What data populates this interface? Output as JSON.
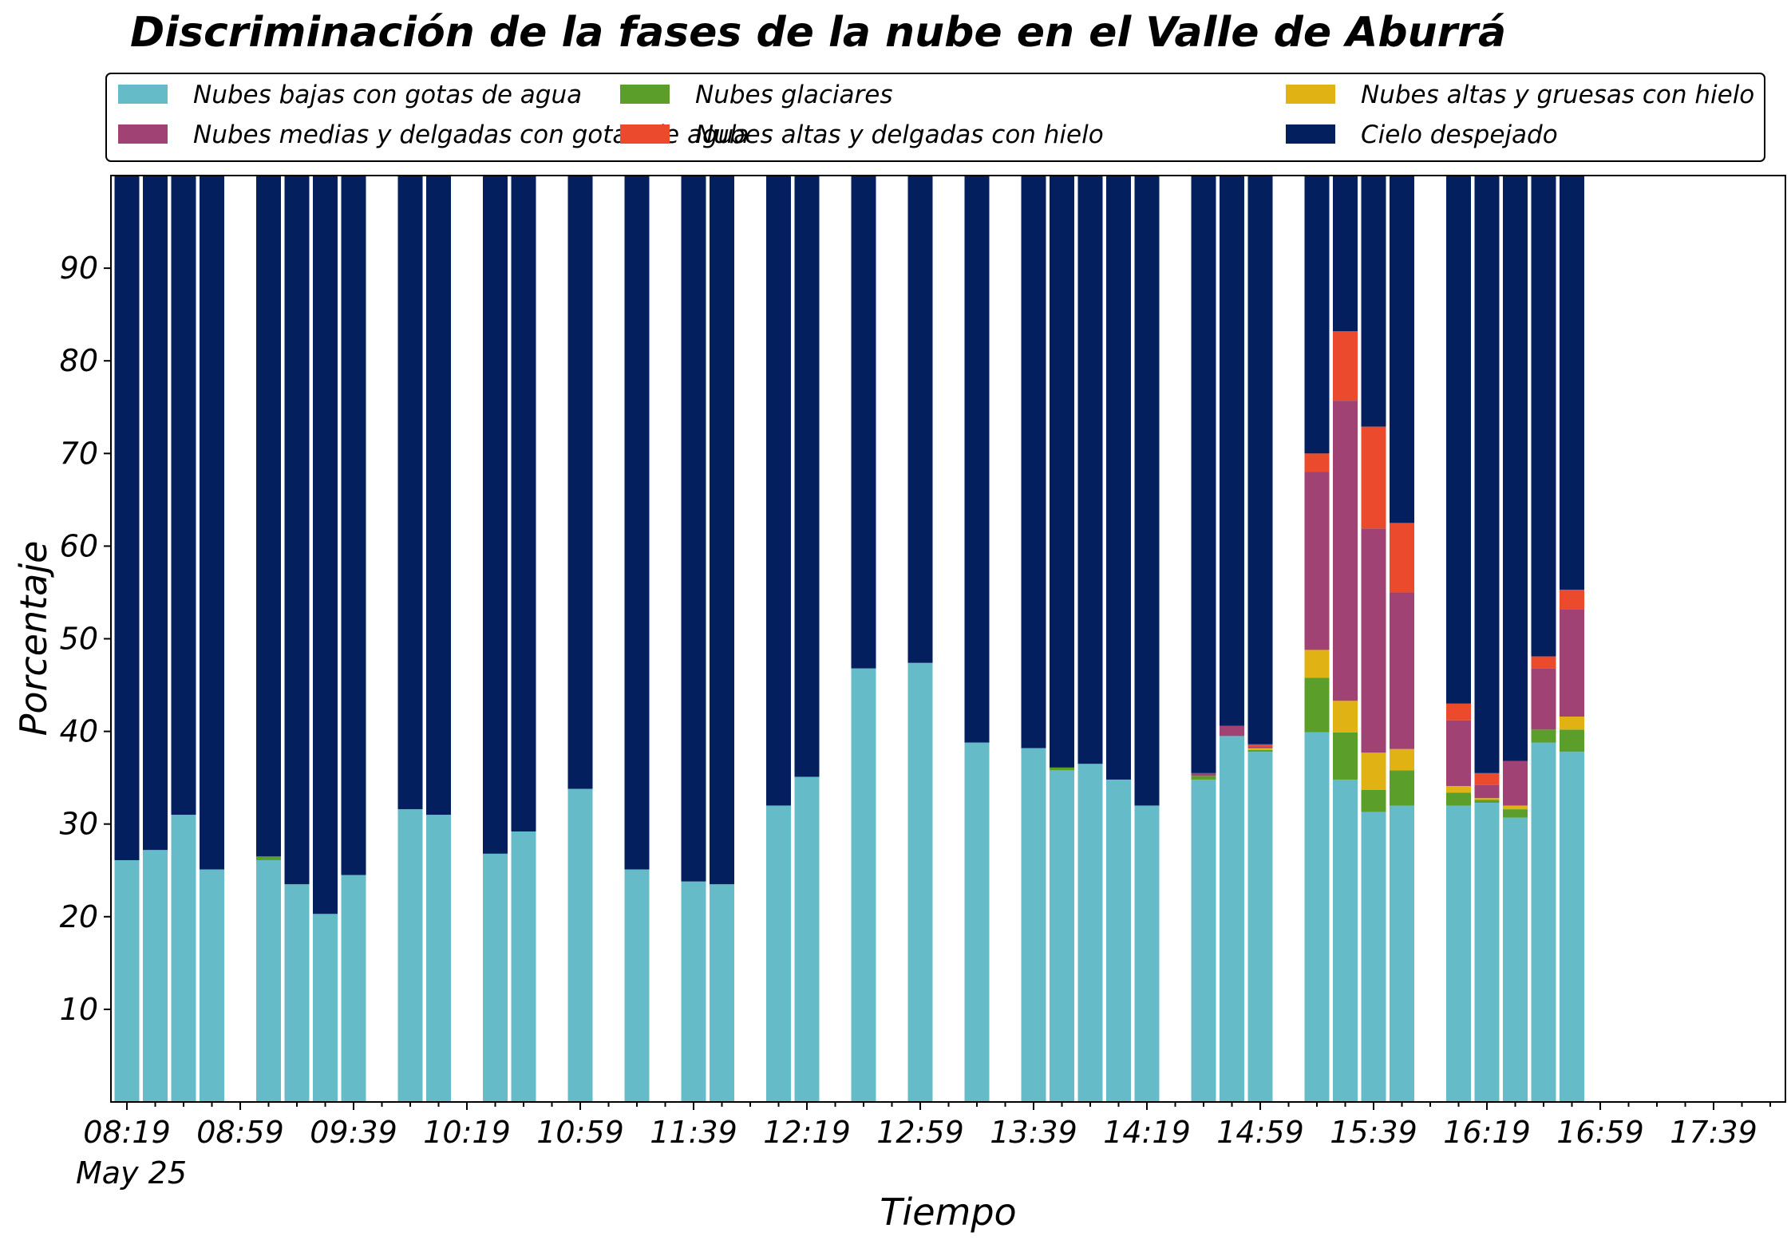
{
  "chart_data": {
    "type": "bar",
    "stacked": true,
    "title": "Discriminación de la fases de la nube en el Valle de Aburrá",
    "xlabel": "Tiempo",
    "ylabel": "Porcentaje",
    "ylim": [
      0,
      100
    ],
    "yticks": [
      10,
      20,
      30,
      40,
      50,
      60,
      70,
      80,
      90
    ],
    "x_start": "08:19",
    "x_step_minutes": 10,
    "x_count": 59,
    "x_tick_labels": [
      "08:19",
      "08:59",
      "09:39",
      "10:19",
      "10:59",
      "11:39",
      "12:19",
      "12:59",
      "13:39",
      "14:19",
      "14:59",
      "15:39",
      "16:19",
      "16:59",
      "17:39"
    ],
    "x_tick_sublabel": "May 25",
    "grid": false,
    "legend_position": "top",
    "legend_columns": 3,
    "series": [
      {
        "name": "Nubes bajas con gotas de agua",
        "color": "#65bcc8"
      },
      {
        "name": "Nubes glaciares",
        "color": "#5b9e2a"
      },
      {
        "name": "Nubes altas y gruesas con hielo",
        "color": "#e1b214"
      },
      {
        "name": "Nubes medias y delgadas con gotas de agua",
        "color": "#a04274"
      },
      {
        "name": "Nubes altas y delgadas con hielo",
        "color": "#ec4a2c"
      },
      {
        "name": "Cielo despejado",
        "color": "#031f5e"
      }
    ],
    "bars": [
      {
        "x": "08:19",
        "values": [
          26.1,
          0,
          0,
          0,
          0,
          73.9
        ]
      },
      {
        "x": "08:29",
        "values": [
          27.2,
          0,
          0,
          0,
          0,
          72.8
        ]
      },
      {
        "x": "08:39",
        "values": [
          31.0,
          0,
          0,
          0,
          0,
          69.0
        ]
      },
      {
        "x": "08:49",
        "values": [
          25.1,
          0,
          0,
          0,
          0,
          74.9
        ]
      },
      {
        "x": "09:09",
        "values": [
          26.1,
          0.4,
          0,
          0,
          0,
          73.5
        ]
      },
      {
        "x": "09:19",
        "values": [
          23.5,
          0,
          0,
          0,
          0,
          76.5
        ]
      },
      {
        "x": "09:29",
        "values": [
          20.3,
          0,
          0,
          0,
          0,
          79.7
        ]
      },
      {
        "x": "09:39",
        "values": [
          24.5,
          0,
          0,
          0,
          0,
          75.5
        ]
      },
      {
        "x": "09:59",
        "values": [
          31.6,
          0,
          0,
          0,
          0,
          68.4
        ]
      },
      {
        "x": "10:09",
        "values": [
          31.0,
          0,
          0,
          0,
          0,
          69.0
        ]
      },
      {
        "x": "10:29",
        "values": [
          26.8,
          0,
          0,
          0,
          0,
          73.2
        ]
      },
      {
        "x": "10:39",
        "values": [
          29.2,
          0,
          0,
          0,
          0,
          70.8
        ]
      },
      {
        "x": "10:59",
        "values": [
          33.8,
          0,
          0,
          0,
          0,
          66.2
        ]
      },
      {
        "x": "11:19",
        "values": [
          25.1,
          0,
          0,
          0,
          0,
          74.9
        ]
      },
      {
        "x": "11:39",
        "values": [
          23.8,
          0,
          0,
          0,
          0,
          76.2
        ]
      },
      {
        "x": "11:49",
        "values": [
          23.5,
          0,
          0,
          0,
          0,
          76.5
        ]
      },
      {
        "x": "12:09",
        "values": [
          32.0,
          0,
          0,
          0,
          0,
          68.0
        ]
      },
      {
        "x": "12:19",
        "values": [
          35.1,
          0,
          0,
          0,
          0,
          64.9
        ]
      },
      {
        "x": "12:39",
        "values": [
          46.8,
          0,
          0,
          0,
          0,
          53.2
        ]
      },
      {
        "x": "12:59",
        "values": [
          47.4,
          0,
          0,
          0,
          0,
          52.6
        ]
      },
      {
        "x": "13:19",
        "values": [
          38.8,
          0,
          0,
          0,
          0,
          61.2
        ]
      },
      {
        "x": "13:39",
        "values": [
          38.2,
          0,
          0,
          0,
          0,
          61.8
        ]
      },
      {
        "x": "13:49",
        "values": [
          35.8,
          0.3,
          0,
          0,
          0,
          63.9
        ]
      },
      {
        "x": "13:59",
        "values": [
          36.5,
          0,
          0,
          0,
          0,
          63.5
        ]
      },
      {
        "x": "14:09",
        "values": [
          34.8,
          0,
          0,
          0,
          0,
          65.2
        ]
      },
      {
        "x": "14:19",
        "values": [
          32.0,
          0,
          0,
          0,
          0,
          68.0
        ]
      },
      {
        "x": "14:39",
        "values": [
          34.8,
          0.4,
          0,
          0.3,
          0,
          64.5
        ]
      },
      {
        "x": "14:49",
        "values": [
          39.5,
          0,
          0,
          1.1,
          0,
          59.4
        ]
      },
      {
        "x": "14:59",
        "values": [
          37.8,
          0.2,
          0.2,
          0.2,
          0.2,
          61.4
        ]
      },
      {
        "x": "15:19",
        "values": [
          39.9,
          5.9,
          3.0,
          19.2,
          2.0,
          30.0
        ]
      },
      {
        "x": "15:29",
        "values": [
          34.8,
          5.1,
          3.4,
          32.4,
          7.5,
          16.8
        ]
      },
      {
        "x": "15:39",
        "values": [
          31.3,
          2.4,
          4.0,
          24.2,
          11.0,
          27.1
        ]
      },
      {
        "x": "15:49",
        "values": [
          32.0,
          3.8,
          2.3,
          16.9,
          7.5,
          37.5
        ]
      },
      {
        "x": "16:09",
        "values": [
          32.0,
          1.4,
          0.7,
          7.1,
          1.8,
          57.0
        ]
      },
      {
        "x": "16:19",
        "values": [
          32.3,
          0.3,
          0.2,
          1.4,
          1.3,
          64.5
        ]
      },
      {
        "x": "16:29",
        "values": [
          30.7,
          0.9,
          0.4,
          4.8,
          0,
          63.2
        ]
      },
      {
        "x": "16:39",
        "values": [
          38.8,
          1.4,
          0,
          6.6,
          1.3,
          51.9
        ]
      },
      {
        "x": "16:49",
        "values": [
          37.8,
          2.4,
          1.4,
          11.6,
          2.1,
          44.7
        ]
      }
    ]
  }
}
